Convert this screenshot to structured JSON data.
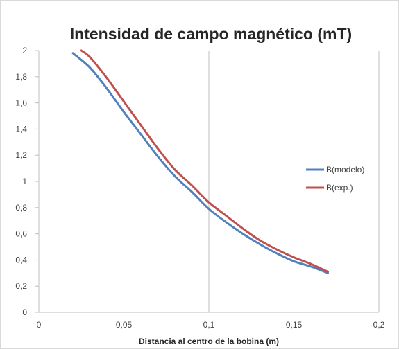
{
  "chart_data": {
    "type": "line",
    "title": "Intensidad de campo magnético (mT)",
    "xlabel": "Distancia al centro de la bobina (m)",
    "ylabel": "",
    "xlim": [
      0,
      0.2
    ],
    "ylim": [
      0,
      2
    ],
    "x_ticks": [
      "0",
      "0,05",
      "0,1",
      "0,15",
      "0,2"
    ],
    "y_ticks": [
      "0",
      "0,2",
      "0,4",
      "0,6",
      "0,8",
      "1",
      "1,2",
      "1,4",
      "1,6",
      "1,8",
      "2"
    ],
    "grid": "vertical",
    "legend": "right",
    "series": [
      {
        "name": "B(modelo)",
        "color": "#4f81bd",
        "points": [
          [
            0.02,
            1.98
          ],
          [
            0.03,
            1.87
          ],
          [
            0.04,
            1.71
          ],
          [
            0.05,
            1.53
          ],
          [
            0.06,
            1.36
          ],
          [
            0.07,
            1.19
          ],
          [
            0.08,
            1.04
          ],
          [
            0.09,
            0.92
          ],
          [
            0.1,
            0.79
          ],
          [
            0.11,
            0.69
          ],
          [
            0.12,
            0.6
          ],
          [
            0.13,
            0.52
          ],
          [
            0.14,
            0.45
          ],
          [
            0.15,
            0.39
          ],
          [
            0.16,
            0.35
          ],
          [
            0.17,
            0.3
          ]
        ]
      },
      {
        "name": "B(exp.)",
        "color": "#c0504d",
        "points": [
          [
            0.025,
            2.0
          ],
          [
            0.03,
            1.95
          ],
          [
            0.04,
            1.79
          ],
          [
            0.05,
            1.61
          ],
          [
            0.06,
            1.43
          ],
          [
            0.07,
            1.25
          ],
          [
            0.08,
            1.09
          ],
          [
            0.09,
            0.97
          ],
          [
            0.1,
            0.84
          ],
          [
            0.11,
            0.74
          ],
          [
            0.12,
            0.64
          ],
          [
            0.13,
            0.55
          ],
          [
            0.14,
            0.48
          ],
          [
            0.15,
            0.42
          ],
          [
            0.16,
            0.37
          ],
          [
            0.17,
            0.31
          ]
        ]
      }
    ]
  }
}
